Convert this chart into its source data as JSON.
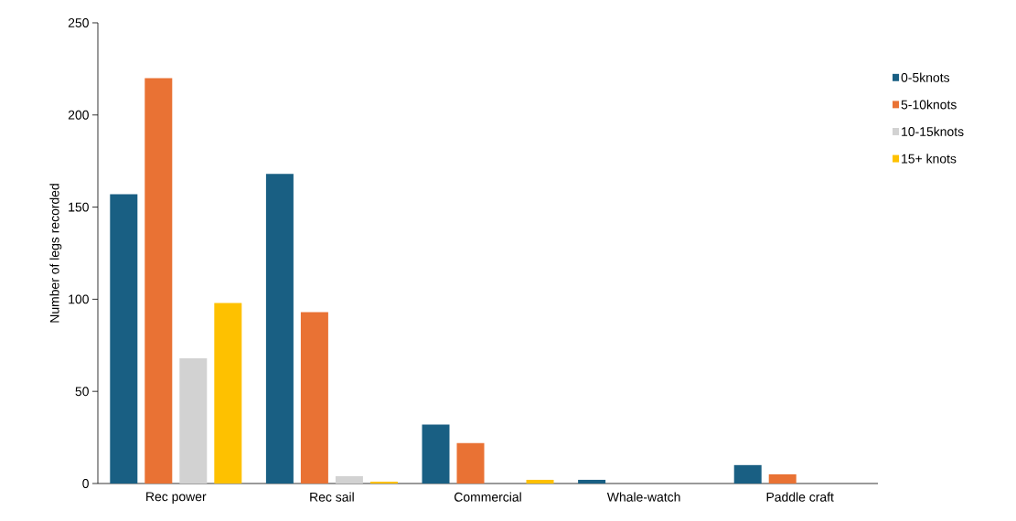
{
  "chart_data": {
    "type": "bar",
    "ylabel": "Number of legs recorded",
    "categories": [
      "Rec power",
      "Rec sail",
      "Commercial",
      "Whale-watch",
      "Paddle craft"
    ],
    "series": [
      {
        "name": "0-5knots",
        "color": "#195f83",
        "values": [
          157,
          168,
          32,
          2,
          10
        ]
      },
      {
        "name": "5-10knots",
        "color": "#e97234",
        "values": [
          220,
          93,
          22,
          0,
          5
        ]
      },
      {
        "name": "10-15knots",
        "color": "#d2d2d2",
        "values": [
          68,
          4,
          0,
          0,
          0
        ]
      },
      {
        "name": "15+ knots",
        "color": "#fec100",
        "values": [
          98,
          1,
          2,
          0,
          0
        ]
      }
    ],
    "ylim": [
      0,
      250
    ],
    "yticks": [
      0,
      50,
      100,
      150,
      200,
      250
    ],
    "grid": false,
    "legend": "right"
  }
}
